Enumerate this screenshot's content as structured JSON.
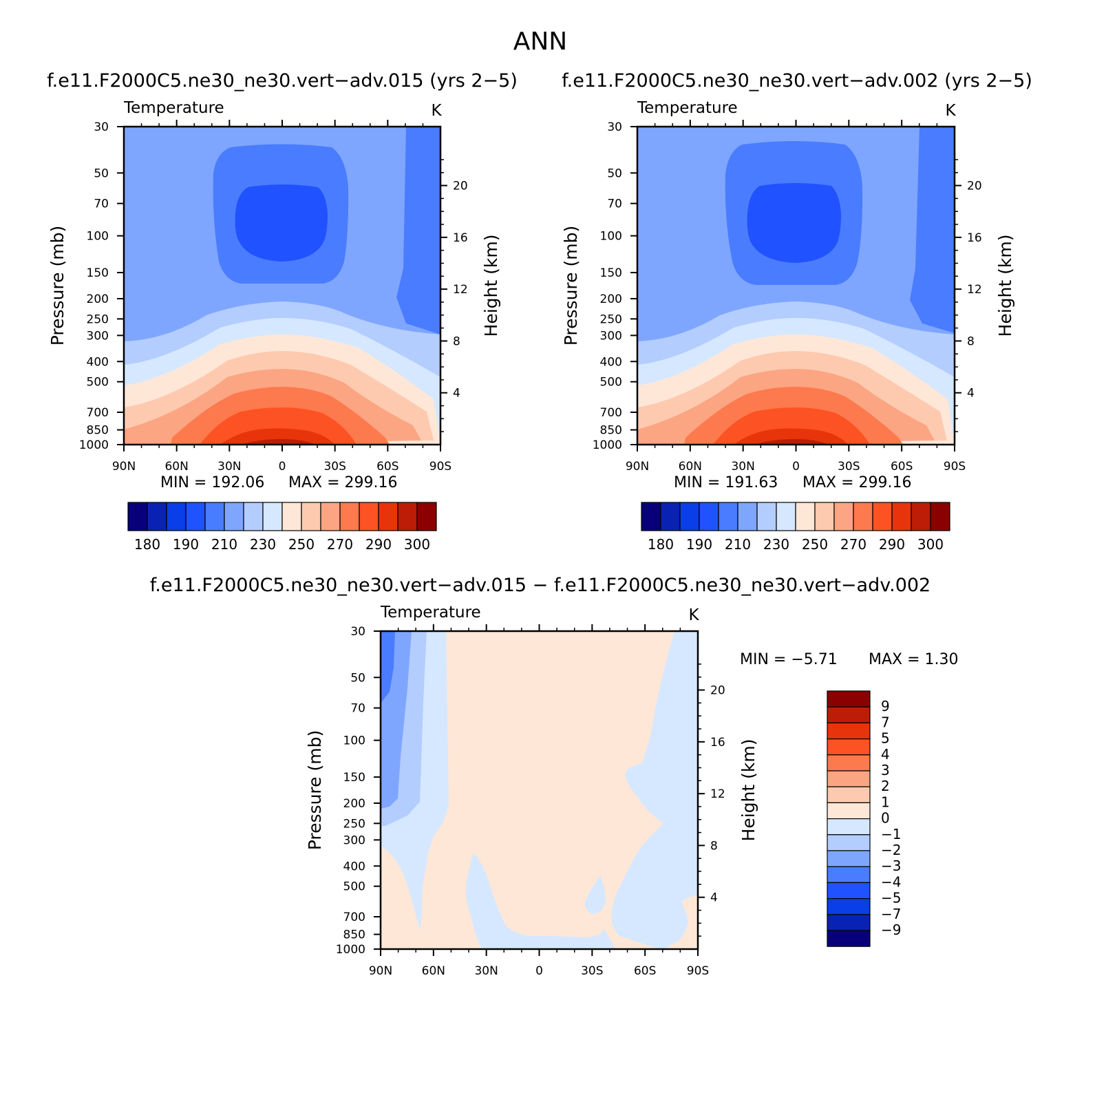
{
  "page": {
    "title": "ANN",
    "diff_title": "f.e11.F2000C5.ne30_ne30.vert−adv.015  −  f.e11.F2000C5.ne30_ne30.vert−adv.002"
  },
  "chart_data": [
    {
      "type": "contour",
      "id": "test",
      "title": "f.e11.F2000C5.ne30_ne30.vert−adv.015 (yrs 2−5)",
      "left_label": "Temperature",
      "units": "K",
      "ylabel": "Pressure  (mb)",
      "ylabel_right": "Height  (km)",
      "xticks": [
        "90N",
        "60N",
        "30N",
        "0",
        "30S",
        "60S",
        "90S"
      ],
      "xlim": [
        -90,
        90
      ],
      "yticks": [
        30,
        50,
        70,
        100,
        150,
        200,
        250,
        300,
        400,
        500,
        700,
        850,
        1000
      ],
      "ylim": [
        1000,
        30
      ],
      "height_ticks": [
        4,
        8,
        12,
        16,
        20
      ],
      "min_label": "MIN  =  192.06",
      "max_label": "MAX  =  299.16",
      "colorbar_labels": [
        "180",
        "190",
        "210",
        "230",
        "250",
        "270",
        "290",
        "300"
      ],
      "colorbar_levels": [
        180,
        185,
        190,
        200,
        210,
        220,
        230,
        240,
        250,
        260,
        270,
        280,
        290,
        295,
        300
      ]
    },
    {
      "type": "contour",
      "id": "control",
      "title": "f.e11.F2000C5.ne30_ne30.vert−adv.002 (yrs 2−5)",
      "left_label": "Temperature",
      "units": "K",
      "ylabel": "Pressure  (mb)",
      "ylabel_right": "Height  (km)",
      "xticks": [
        "90N",
        "60N",
        "30N",
        "0",
        "30S",
        "60S",
        "90S"
      ],
      "xlim": [
        -90,
        90
      ],
      "yticks": [
        30,
        50,
        70,
        100,
        150,
        200,
        250,
        300,
        400,
        500,
        700,
        850,
        1000
      ],
      "ylim": [
        1000,
        30
      ],
      "height_ticks": [
        4,
        8,
        12,
        16,
        20
      ],
      "min_label": "MIN  =  191.63",
      "max_label": "MAX  =  299.16",
      "colorbar_labels": [
        "180",
        "190",
        "210",
        "230",
        "250",
        "270",
        "290",
        "300"
      ],
      "colorbar_levels": [
        180,
        185,
        190,
        200,
        210,
        220,
        230,
        240,
        250,
        260,
        270,
        280,
        290,
        295,
        300
      ]
    },
    {
      "type": "contour",
      "id": "difference",
      "left_label": "Temperature",
      "units": "K",
      "ylabel": "Pressure  (mb)",
      "ylabel_right": "Height  (km)",
      "xticks": [
        "90N",
        "60N",
        "30N",
        "0",
        "30S",
        "60S",
        "90S"
      ],
      "xlim": [
        -90,
        90
      ],
      "yticks": [
        30,
        50,
        70,
        100,
        150,
        200,
        250,
        300,
        400,
        500,
        700,
        850,
        1000
      ],
      "ylim": [
        1000,
        30
      ],
      "height_ticks": [
        4,
        8,
        12,
        16,
        20
      ],
      "min_label": "MIN  =     −5.71",
      "max_label": "MAX  =      1.30",
      "colorbar_labels": [
        "9",
        "7",
        "5",
        "4",
        "3",
        "2",
        "1",
        "0",
        "−1",
        "−2",
        "−3",
        "−4",
        "−5",
        "−7",
        "−9"
      ]
    }
  ],
  "colors": {
    "temp_scale": [
      "#08007a",
      "#0a22b4",
      "#0a3ee6",
      "#2052ff",
      "#4a7cff",
      "#7fa6ff",
      "#b4cdff",
      "#d6e8ff",
      "#ffe7d8",
      "#fdcab0",
      "#fca582",
      "#fd7a4e",
      "#fd5223",
      "#e8340a",
      "#bd1c06",
      "#8b0000"
    ],
    "diff_scale": [
      "#8b0000",
      "#bd1c06",
      "#e8340a",
      "#fd5223",
      "#fd7a4e",
      "#fca582",
      "#fdcab0",
      "#ffe7d8",
      "#d6e8ff",
      "#b4cdff",
      "#7fa6ff",
      "#4a7cff",
      "#2052ff",
      "#0a3ee6",
      "#0a22b4",
      "#08007a"
    ]
  }
}
